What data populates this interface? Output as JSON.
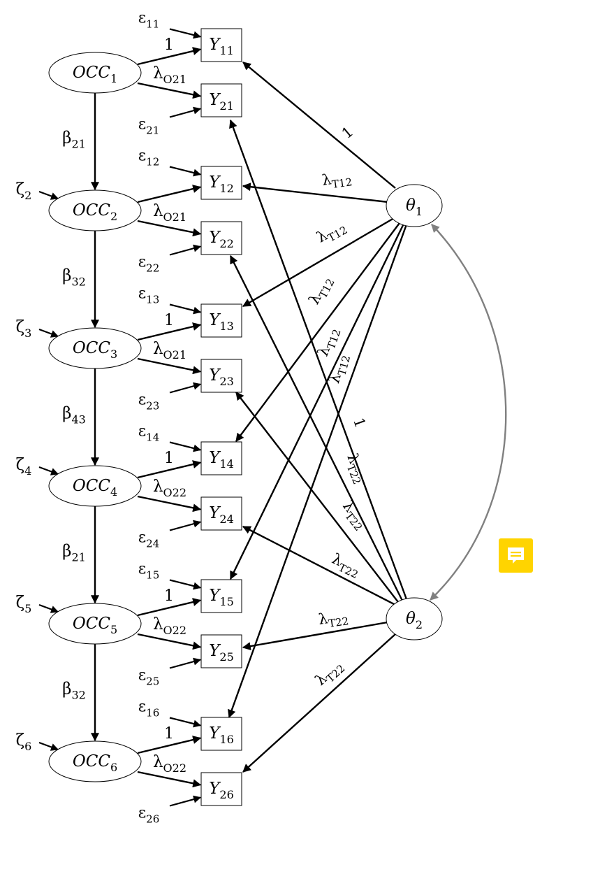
{
  "diagram": {
    "occasions": [
      {
        "base": "OCC",
        "sub": "1"
      },
      {
        "base": "OCC",
        "sub": "2"
      },
      {
        "base": "OCC",
        "sub": "3"
      },
      {
        "base": "OCC",
        "sub": "4"
      },
      {
        "base": "OCC",
        "sub": "5"
      },
      {
        "base": "OCC",
        "sub": "6"
      }
    ],
    "zetas": [
      {
        "base": "ζ",
        "sub": "2"
      },
      {
        "base": "ζ",
        "sub": "3"
      },
      {
        "base": "ζ",
        "sub": "4"
      },
      {
        "base": "ζ",
        "sub": "5"
      },
      {
        "base": "ζ",
        "sub": "6"
      }
    ],
    "betas": [
      {
        "base": "β",
        "sub": "21"
      },
      {
        "base": "β",
        "sub": "32"
      },
      {
        "base": "β",
        "sub": "43"
      },
      {
        "base": "β",
        "sub": "21"
      },
      {
        "base": "β",
        "sub": "32"
      }
    ],
    "indicators": [
      {
        "base": "Y",
        "sub": "11"
      },
      {
        "base": "Y",
        "sub": "21"
      },
      {
        "base": "Y",
        "sub": "12"
      },
      {
        "base": "Y",
        "sub": "22"
      },
      {
        "base": "Y",
        "sub": "13"
      },
      {
        "base": "Y",
        "sub": "23"
      },
      {
        "base": "Y",
        "sub": "14"
      },
      {
        "base": "Y",
        "sub": "24"
      },
      {
        "base": "Y",
        "sub": "15"
      },
      {
        "base": "Y",
        "sub": "25"
      },
      {
        "base": "Y",
        "sub": "16"
      },
      {
        "base": "Y",
        "sub": "26"
      }
    ],
    "errors": [
      {
        "base": "ε",
        "sub": "11"
      },
      {
        "base": "ε",
        "sub": "21"
      },
      {
        "base": "ε",
        "sub": "12"
      },
      {
        "base": "ε",
        "sub": "22"
      },
      {
        "base": "ε",
        "sub": "13"
      },
      {
        "base": "ε",
        "sub": "23"
      },
      {
        "base": "ε",
        "sub": "14"
      },
      {
        "base": "ε",
        "sub": "24"
      },
      {
        "base": "ε",
        "sub": "15"
      },
      {
        "base": "ε",
        "sub": "25"
      },
      {
        "base": "ε",
        "sub": "16"
      },
      {
        "base": "ε",
        "sub": "26"
      }
    ],
    "occ_loadings": [
      {
        "top": "1",
        "bottom": {
          "base": "λ",
          "sub": "O21"
        }
      },
      {
        "top": "",
        "bottom": {
          "base": "λ",
          "sub": "O21"
        }
      },
      {
        "top": "1",
        "bottom": {
          "base": "λ",
          "sub": "O21"
        }
      },
      {
        "top": "1",
        "bottom": {
          "base": "λ",
          "sub": "O22"
        }
      },
      {
        "top": "1",
        "bottom": {
          "base": "λ",
          "sub": "O22"
        }
      },
      {
        "top": "1",
        "bottom": {
          "base": "λ",
          "sub": "O22"
        }
      }
    ],
    "traits": [
      {
        "base": "θ",
        "sub": "1"
      },
      {
        "base": "θ",
        "sub": "2"
      }
    ],
    "trait_loadings": {
      "theta1": [
        {
          "base": "1",
          "sub": ""
        },
        {
          "base": "λ",
          "sub": "T12"
        },
        {
          "base": "λ",
          "sub": "T12"
        },
        {
          "base": "λ",
          "sub": "T12"
        },
        {
          "base": "λ",
          "sub": "T12"
        },
        {
          "base": "λ",
          "sub": "T12"
        }
      ],
      "theta2": [
        {
          "base": "1",
          "sub": ""
        },
        {
          "base": "λ",
          "sub": "T22"
        },
        {
          "base": "λ",
          "sub": "T22"
        },
        {
          "base": "λ",
          "sub": "T22"
        },
        {
          "base": "λ",
          "sub": "T22"
        },
        {
          "base": "λ",
          "sub": "T22"
        }
      ]
    },
    "covariance_color": "#808080",
    "comment_icon_color": "#ffd400"
  }
}
